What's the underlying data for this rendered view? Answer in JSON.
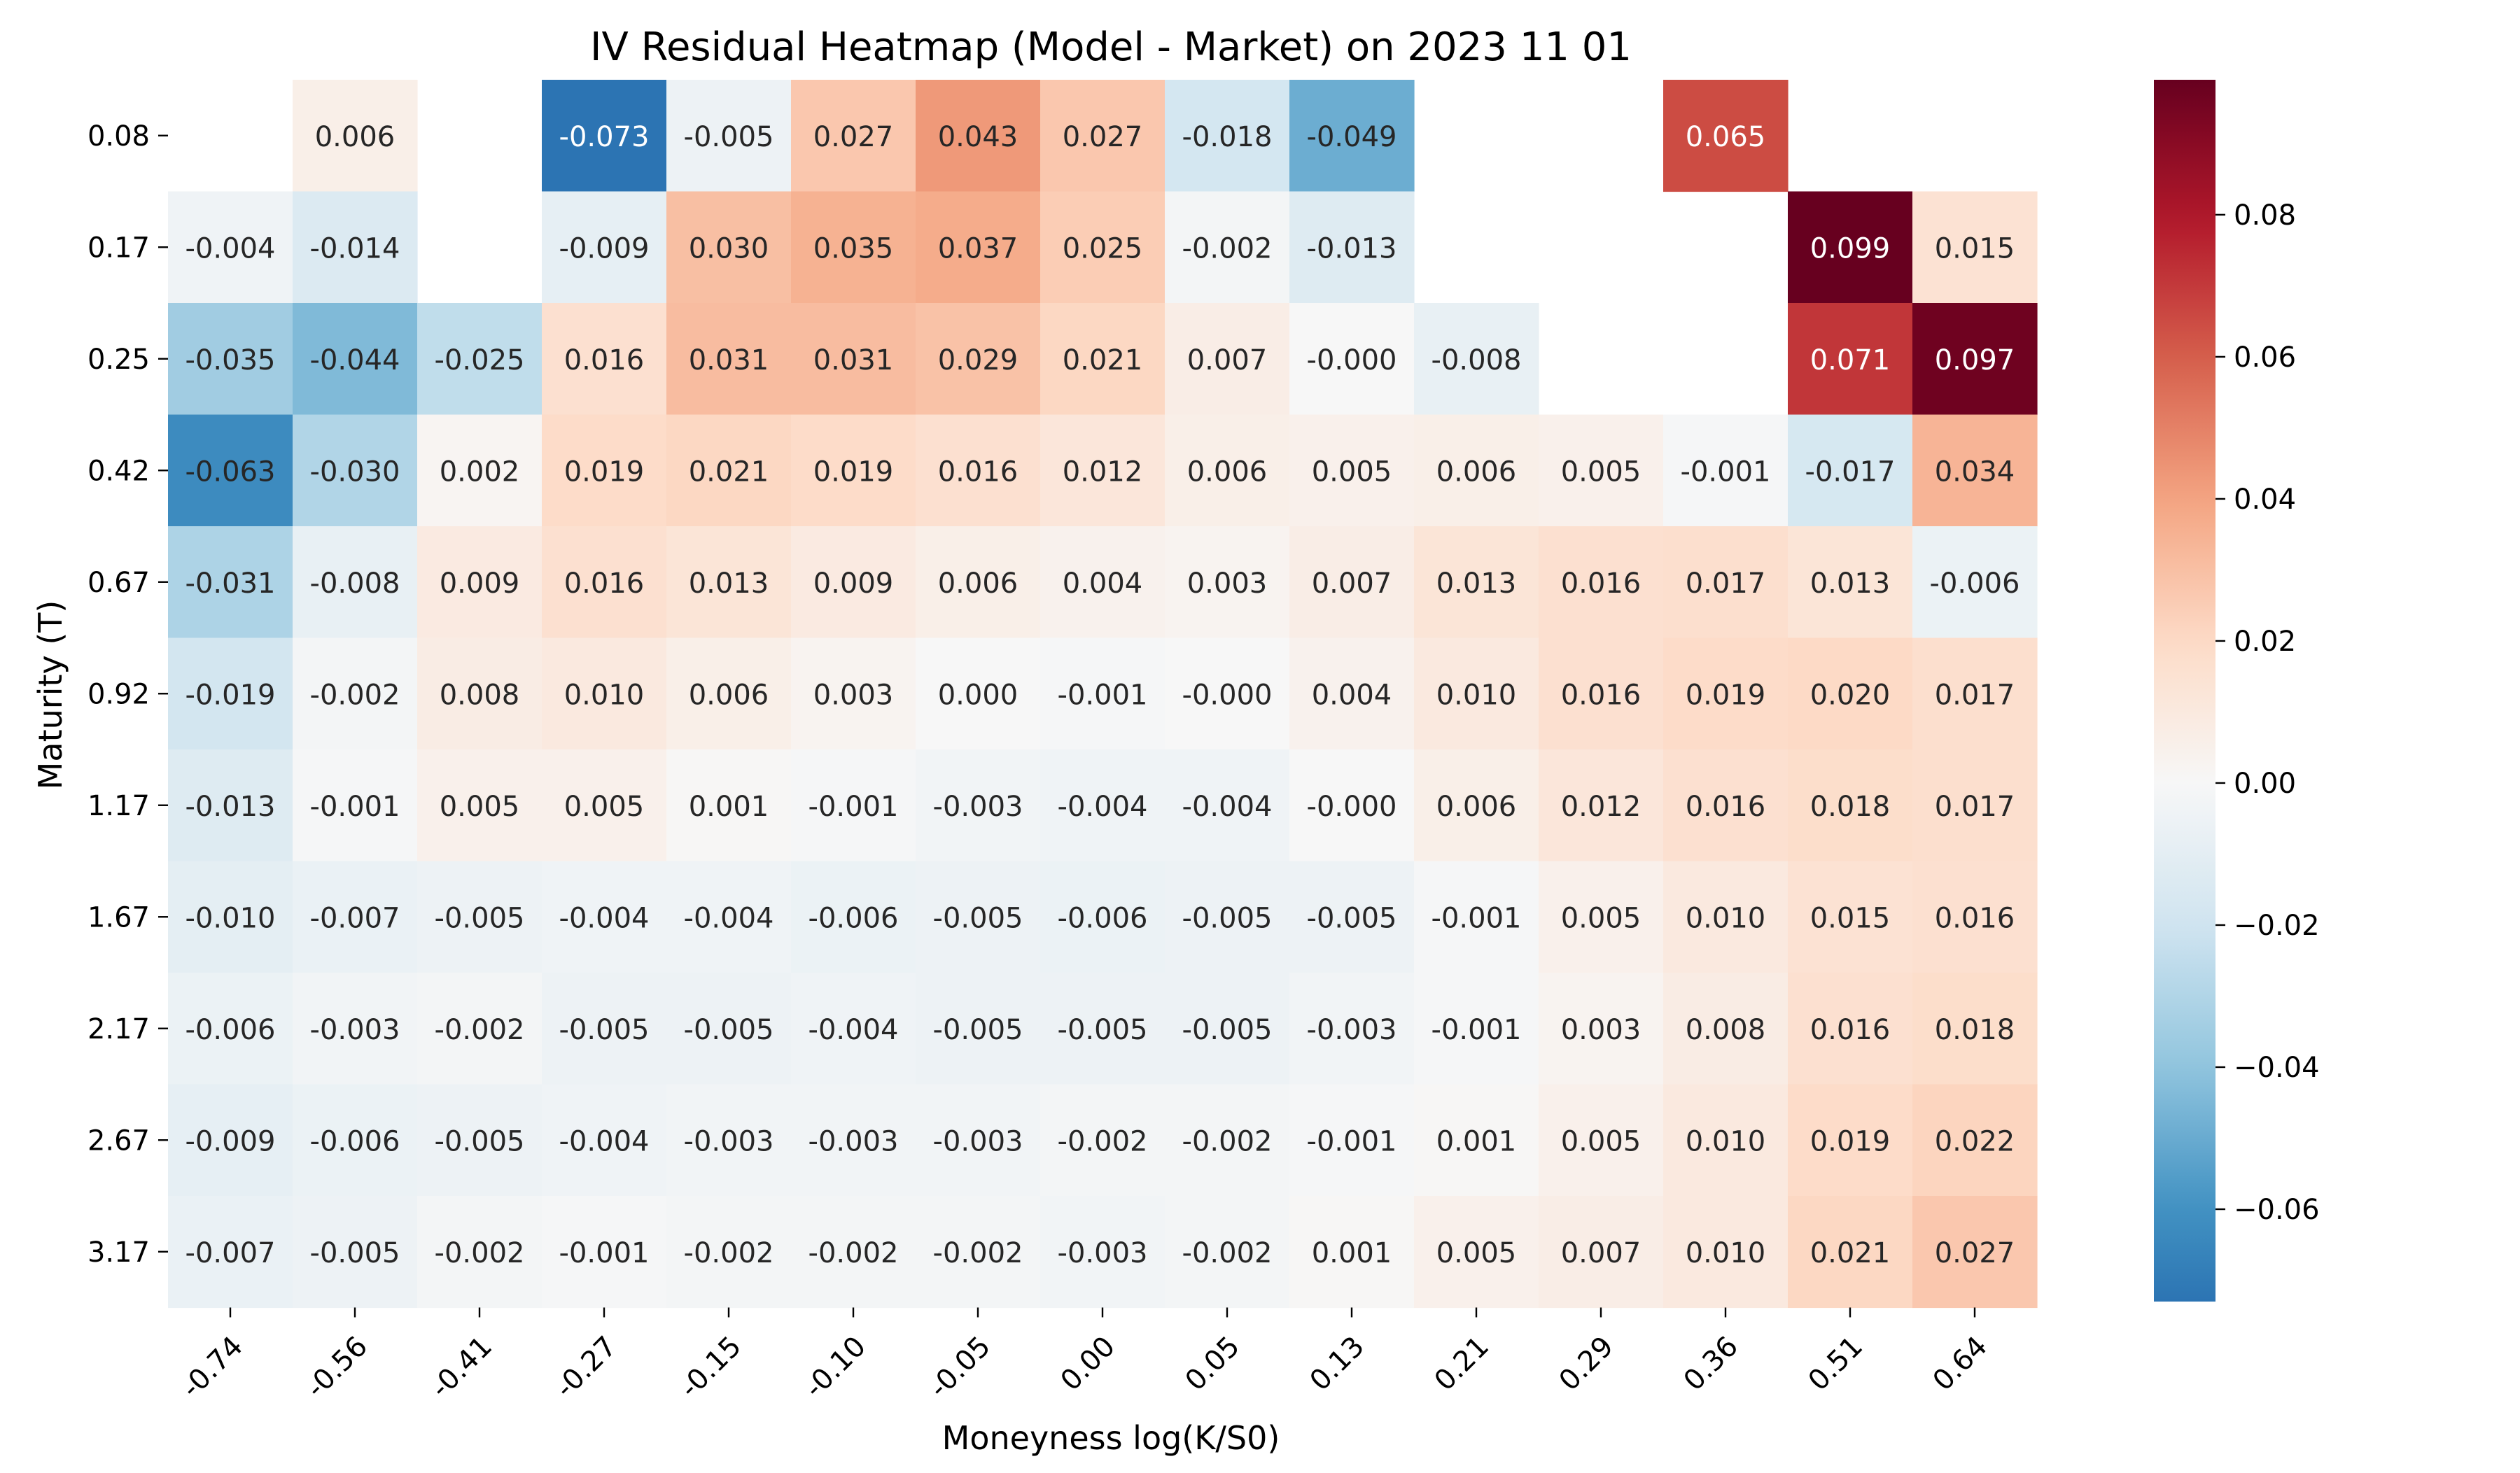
{
  "chart_data": {
    "type": "heatmap",
    "title": "IV Residual Heatmap (Model - Market) on 2023 11 01",
    "xlabel": "Moneyness log(K/S0)",
    "ylabel": "Maturity (T)",
    "x_categories": [
      "-0.74",
      "-0.56",
      "-0.41",
      "-0.27",
      "-0.15",
      "-0.10",
      "-0.05",
      "0.00",
      "0.05",
      "0.13",
      "0.21",
      "0.29",
      "0.36",
      "0.51",
      "0.64"
    ],
    "y_categories": [
      "0.08",
      "0.17",
      "0.25",
      "0.42",
      "0.67",
      "0.92",
      "1.17",
      "1.67",
      "2.17",
      "2.67",
      "3.17"
    ],
    "values": [
      [
        null,
        0.006,
        null,
        -0.073,
        -0.005,
        0.027,
        0.043,
        0.027,
        -0.018,
        -0.049,
        null,
        null,
        0.065,
        null,
        null
      ],
      [
        -0.004,
        -0.014,
        null,
        -0.009,
        0.03,
        0.035,
        0.037,
        0.025,
        -0.002,
        -0.013,
        null,
        null,
        null,
        0.099,
        0.015
      ],
      [
        -0.035,
        -0.044,
        -0.025,
        0.016,
        0.031,
        0.031,
        0.029,
        0.021,
        0.007,
        -0.0,
        -0.008,
        null,
        null,
        0.071,
        0.097
      ],
      [
        -0.063,
        -0.03,
        0.002,
        0.019,
        0.021,
        0.019,
        0.016,
        0.012,
        0.006,
        0.005,
        0.006,
        0.005,
        -0.001,
        -0.017,
        0.034
      ],
      [
        -0.031,
        -0.008,
        0.009,
        0.016,
        0.013,
        0.009,
        0.006,
        0.004,
        0.003,
        0.007,
        0.013,
        0.016,
        0.017,
        0.013,
        -0.006
      ],
      [
        -0.019,
        -0.002,
        0.008,
        0.01,
        0.006,
        0.003,
        0.0,
        -0.001,
        -0.0,
        0.004,
        0.01,
        0.016,
        0.019,
        0.02,
        0.017
      ],
      [
        -0.013,
        -0.001,
        0.005,
        0.005,
        0.001,
        -0.001,
        -0.003,
        -0.004,
        -0.004,
        -0.0,
        0.006,
        0.012,
        0.016,
        0.018,
        0.017
      ],
      [
        -0.01,
        -0.007,
        -0.005,
        -0.004,
        -0.004,
        -0.006,
        -0.005,
        -0.006,
        -0.005,
        -0.005,
        -0.001,
        0.005,
        0.01,
        0.015,
        0.016
      ],
      [
        -0.006,
        -0.003,
        -0.002,
        -0.005,
        -0.005,
        -0.004,
        -0.005,
        -0.005,
        -0.005,
        -0.003,
        -0.001,
        0.003,
        0.008,
        0.016,
        0.018
      ],
      [
        -0.009,
        -0.006,
        -0.005,
        -0.004,
        -0.003,
        -0.003,
        -0.003,
        -0.002,
        -0.002,
        -0.001,
        0.001,
        0.005,
        0.01,
        0.019,
        0.022
      ],
      [
        -0.007,
        -0.005,
        -0.002,
        -0.001,
        -0.002,
        -0.002,
        -0.002,
        -0.003,
        -0.002,
        0.001,
        0.005,
        0.007,
        0.01,
        0.021,
        0.027
      ]
    ],
    "value_labels": [
      [
        "",
        "0.006",
        "",
        "-0.073",
        "-0.005",
        "0.027",
        "0.043",
        "0.027",
        "-0.018",
        "-0.049",
        "",
        "",
        "0.065",
        "",
        ""
      ],
      [
        "-0.004",
        "-0.014",
        "",
        "-0.009",
        "0.030",
        "0.035",
        "0.037",
        "0.025",
        "-0.002",
        "-0.013",
        "",
        "",
        "",
        "0.099",
        "0.015"
      ],
      [
        "-0.035",
        "-0.044",
        "-0.025",
        "0.016",
        "0.031",
        "0.031",
        "0.029",
        "0.021",
        "0.007",
        "-0.000",
        "-0.008",
        "",
        "",
        "0.071",
        "0.097"
      ],
      [
        "-0.063",
        "-0.030",
        "0.002",
        "0.019",
        "0.021",
        "0.019",
        "0.016",
        "0.012",
        "0.006",
        "0.005",
        "0.006",
        "0.005",
        "-0.001",
        "-0.017",
        "0.034"
      ],
      [
        "-0.031",
        "-0.008",
        "0.009",
        "0.016",
        "0.013",
        "0.009",
        "0.006",
        "0.004",
        "0.003",
        "0.007",
        "0.013",
        "0.016",
        "0.017",
        "0.013",
        "-0.006"
      ],
      [
        "-0.019",
        "-0.002",
        "0.008",
        "0.010",
        "0.006",
        "0.003",
        "0.000",
        "-0.001",
        "-0.000",
        "0.004",
        "0.010",
        "0.016",
        "0.019",
        "0.020",
        "0.017"
      ],
      [
        "-0.013",
        "-0.001",
        "0.005",
        "0.005",
        "0.001",
        "-0.001",
        "-0.003",
        "-0.004",
        "-0.004",
        "-0.000",
        "0.006",
        "0.012",
        "0.016",
        "0.018",
        "0.017"
      ],
      [
        "-0.010",
        "-0.007",
        "-0.005",
        "-0.004",
        "-0.004",
        "-0.006",
        "-0.005",
        "-0.006",
        "-0.005",
        "-0.005",
        "-0.001",
        "0.005",
        "0.010",
        "0.015",
        "0.016"
      ],
      [
        "-0.006",
        "-0.003",
        "-0.002",
        "-0.005",
        "-0.005",
        "-0.004",
        "-0.005",
        "-0.005",
        "-0.005",
        "-0.003",
        "-0.001",
        "0.003",
        "0.008",
        "0.016",
        "0.018"
      ],
      [
        "-0.009",
        "-0.006",
        "-0.005",
        "-0.004",
        "-0.003",
        "-0.003",
        "-0.003",
        "-0.002",
        "-0.002",
        "-0.001",
        "0.001",
        "0.005",
        "0.010",
        "0.019",
        "0.022"
      ],
      [
        "-0.007",
        "-0.005",
        "-0.002",
        "-0.001",
        "-0.002",
        "-0.002",
        "-0.002",
        "-0.003",
        "-0.002",
        "0.001",
        "0.005",
        "0.007",
        "0.010",
        "0.021",
        "0.027"
      ]
    ],
    "colorbar": {
      "colormap": "RdBu_r",
      "range": [
        -0.073,
        0.099
      ],
      "ticks": [
        -0.06,
        -0.04,
        -0.02,
        0.0,
        0.02,
        0.04,
        0.06,
        0.08
      ],
      "tick_labels": [
        "−0.06",
        "−0.04",
        "−0.02",
        "0.00",
        "0.02",
        "0.04",
        "0.06",
        "0.08"
      ]
    }
  }
}
